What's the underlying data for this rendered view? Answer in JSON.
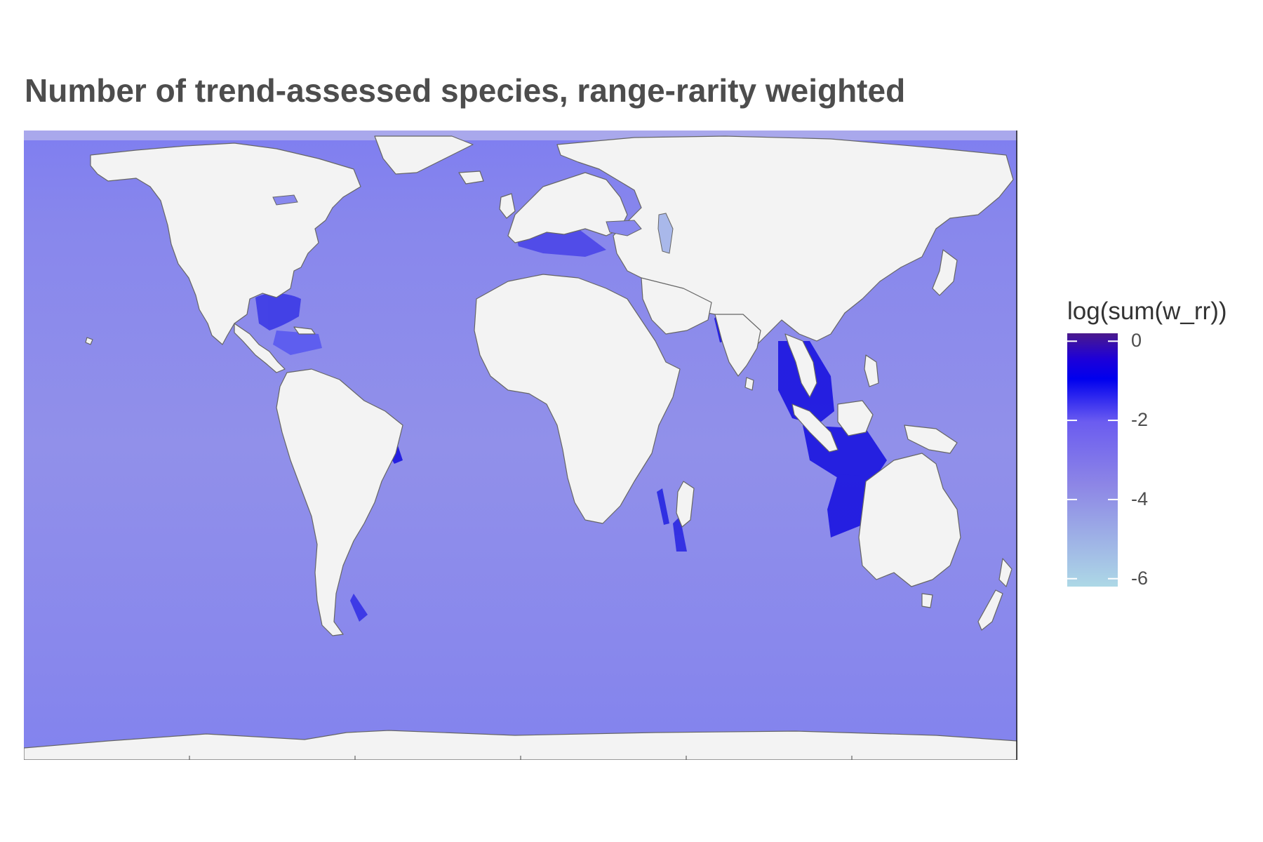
{
  "title": "Number of trend-assessed species, range-rarity weighted",
  "legend": {
    "title": "log(sum(w_rr))",
    "ticks": [
      {
        "value": 0,
        "label": "0"
      },
      {
        "value": -2,
        "label": "-2"
      },
      {
        "value": -4,
        "label": "-4"
      },
      {
        "value": -6,
        "label": "-6"
      }
    ],
    "range": [
      -6.2,
      0.2
    ],
    "colors": {
      "low": "#add8e6",
      "mid": "#8b87ea",
      "high_mid": "#7a6ff0",
      "high": "#0000e6",
      "max": "#4b1a8c"
    }
  },
  "map": {
    "projection": "Robinson-like world",
    "land_color": "#f3f3f3",
    "ocean_color": "#8c8bee",
    "coast_color": "#666666",
    "hotspots": [
      "Coral Triangle",
      "Gulf of Mexico",
      "Caribbean",
      "Red Sea",
      "Mediterranean",
      "Northern Australia",
      "Brazil coast"
    ]
  }
}
